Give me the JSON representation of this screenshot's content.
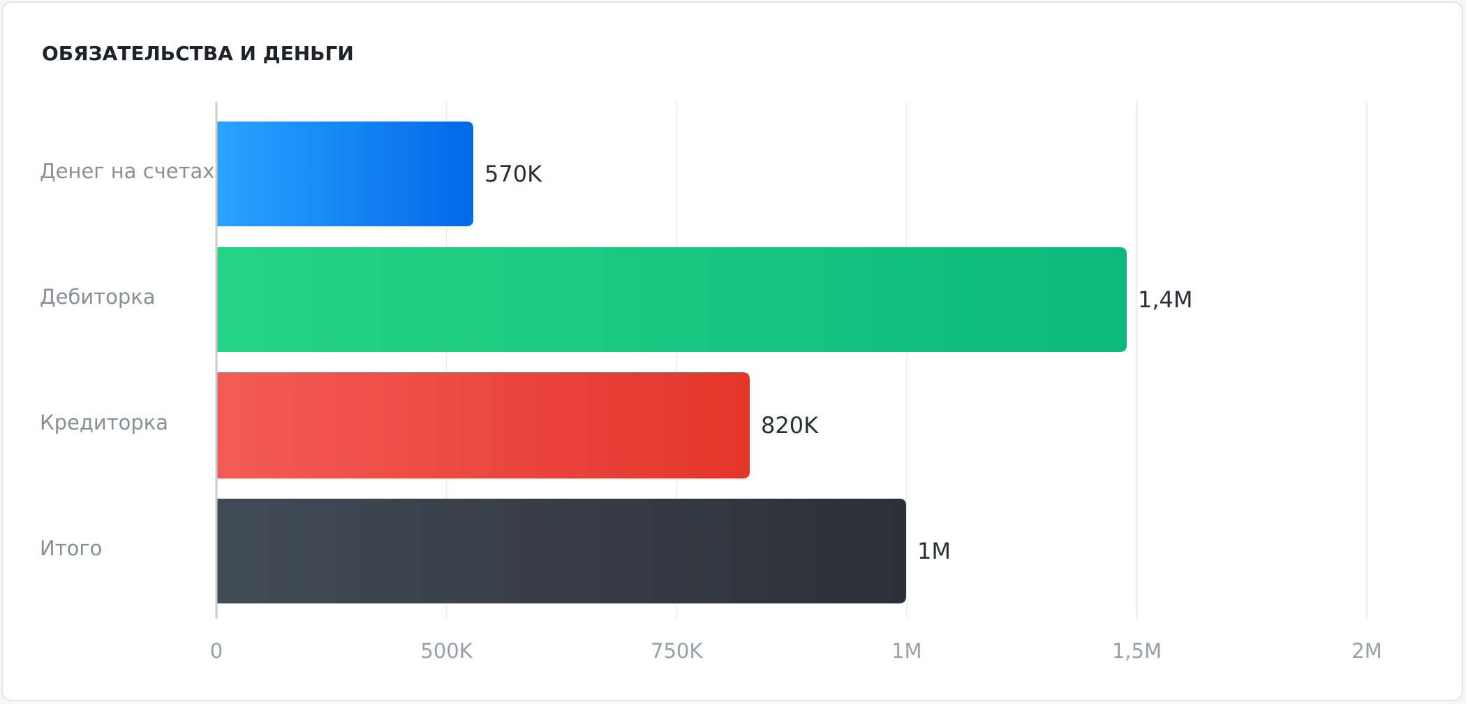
{
  "card": {
    "title": "ОБЯЗАТЕЛЬСТВА И ДЕНЬГИ"
  },
  "chart_data": {
    "type": "bar",
    "orientation": "horizontal",
    "title": "ОБЯЗАТЕЛЬСТВА И ДЕНЬГИ",
    "xlabel": "",
    "ylabel": "",
    "grid": true,
    "legend": "none",
    "categories": [
      "Денег на счетах",
      "Дебиторка",
      "Кредиторка",
      "Итого"
    ],
    "values": [
      570000,
      1400000,
      820000,
      1000000
    ],
    "value_labels": [
      "570K",
      "1,4M",
      "820K",
      "1M"
    ],
    "x_ticks": [
      {
        "value": 0,
        "label": "0"
      },
      {
        "value": 500000,
        "label": "500K"
      },
      {
        "value": 750000,
        "label": "750K"
      },
      {
        "value": 1000000,
        "label": "1M"
      },
      {
        "value": 1500000,
        "label": "1,5M"
      },
      {
        "value": 2000000,
        "label": "2M"
      }
    ],
    "colors": [
      {
        "from": "#2aa3ff",
        "to": "#0069e8"
      },
      {
        "from": "#26d485",
        "to": "#0cb97b"
      },
      {
        "from": "#f35b55",
        "to": "#e3352a"
      },
      {
        "from": "#414b56",
        "to": "#2b2f37"
      }
    ]
  }
}
